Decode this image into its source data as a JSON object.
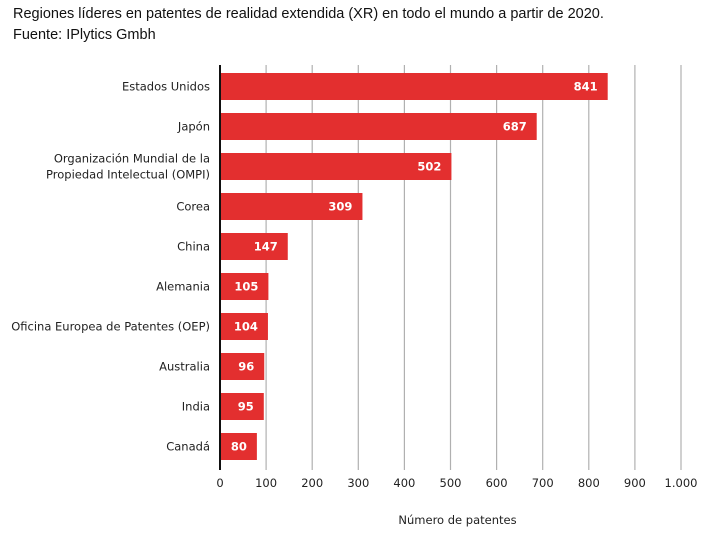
{
  "title": {
    "line1": "Regiones líderes en patentes de realidad extendida (XR) en todo el mundo a partir de 2020.",
    "line2": "Fuente: IPlytics Gmbh"
  },
  "colors": {
    "bar": "#e32f2f",
    "grid": "#b0b0b0",
    "axis": "#111111",
    "value_label": "#ffffff"
  },
  "chart_data": {
    "type": "bar",
    "orientation": "horizontal",
    "title": "Regiones líderes en patentes de realidad extendida (XR) en todo el mundo a partir de 2020.",
    "subtitle": "Fuente: IPlytics Gmbh",
    "categories": [
      [
        "Estados Unidos"
      ],
      [
        "Japón"
      ],
      [
        "Organización Mundial de la",
        "Propiedad Intelectual (OMPI)"
      ],
      [
        "Corea"
      ],
      [
        "China"
      ],
      [
        "Alemania"
      ],
      [
        "Oficina Europea de Patentes (OEP)"
      ],
      [
        "Australia"
      ],
      [
        "India"
      ],
      [
        "Canadá"
      ]
    ],
    "values": [
      841,
      687,
      502,
      309,
      147,
      105,
      104,
      96,
      95,
      80
    ],
    "value_labels": [
      "841",
      "687",
      "502",
      "309",
      "147",
      "105",
      "104",
      "96",
      "95",
      "80"
    ],
    "xlabel": "Número de patentes",
    "ylabel": "",
    "xlim": [
      0,
      1000
    ],
    "xticks": [
      0,
      100,
      200,
      300,
      400,
      500,
      600,
      700,
      800,
      900,
      1000
    ],
    "xtick_labels": [
      "0",
      "100",
      "200",
      "300",
      "400",
      "500",
      "600",
      "700",
      "800",
      "900",
      "1.000"
    ],
    "grid": "vertical",
    "legend": "none"
  }
}
